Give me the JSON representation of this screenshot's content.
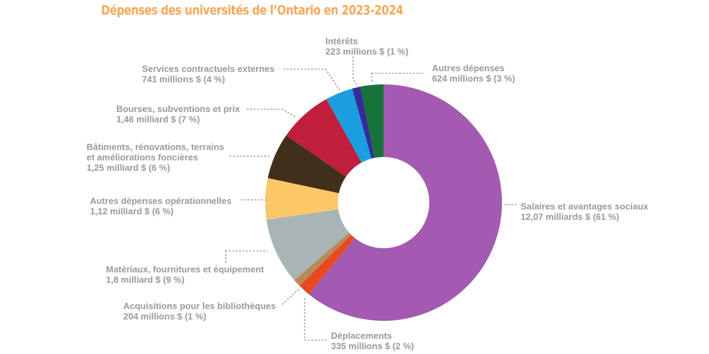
{
  "chart_data": {
    "type": "pie",
    "variant": "donut",
    "title": "Dépenses des universités de l’Ontario en 2023-2024",
    "start": "top",
    "direction": "clockwise",
    "slices": [
      {
        "name": "Salaires et avantages sociaux",
        "amount_label": "12,07 milliards $ (61 %)",
        "value": 12070,
        "percent": 61,
        "color": "#a35ab0"
      },
      {
        "name": "Déplacements",
        "amount_label": "335 millions $ (2 %)",
        "value": 335,
        "percent": 2,
        "color": "#e8491f"
      },
      {
        "name": "Acquisitions pour les bibliothèques",
        "amount_label": "204 millions $ (1 %)",
        "value": 204,
        "percent": 1,
        "color": "#b88a5a"
      },
      {
        "name": "Matériaux, fournitures et équipement",
        "amount_label": "1,8 milliard $ (9 %)",
        "value": 1800,
        "percent": 9,
        "color": "#a9b4b6"
      },
      {
        "name": "Autres dépenses opérationnelles",
        "amount_label": "1,12 milliard $ (6 %)",
        "value": 1120,
        "percent": 6,
        "color": "#fcc867"
      },
      {
        "name": "Bâtiments, rénovations, terrains et améliorations foncières",
        "name_lines": [
          "Bâtiments, rénovations, terrains",
          "et améliorations foncières"
        ],
        "amount_label": "1,25 milliard $ (6 %)",
        "value": 1250,
        "percent": 6,
        "color": "#40301a"
      },
      {
        "name": "Bourses, subventions et prix",
        "amount_label": "1,46 milliard $ (7 %)",
        "value": 1460,
        "percent": 7,
        "color": "#bf1f3a"
      },
      {
        "name": "Services contractuels externes",
        "amount_label": "741 millions $ (4 %)",
        "value": 741,
        "percent": 4,
        "color": "#1a9ee0"
      },
      {
        "name": "Intérêts",
        "amount_label": "223 millions $ (1 %)",
        "value": 223,
        "percent": 1,
        "color": "#352c98"
      },
      {
        "name": "Autres dépenses",
        "amount_label": "624 millions $ (3 %)",
        "value": 624,
        "percent": 3,
        "color": "#17733a"
      }
    ],
    "units": "millions $",
    "legend": "none (leader-line labels)"
  }
}
